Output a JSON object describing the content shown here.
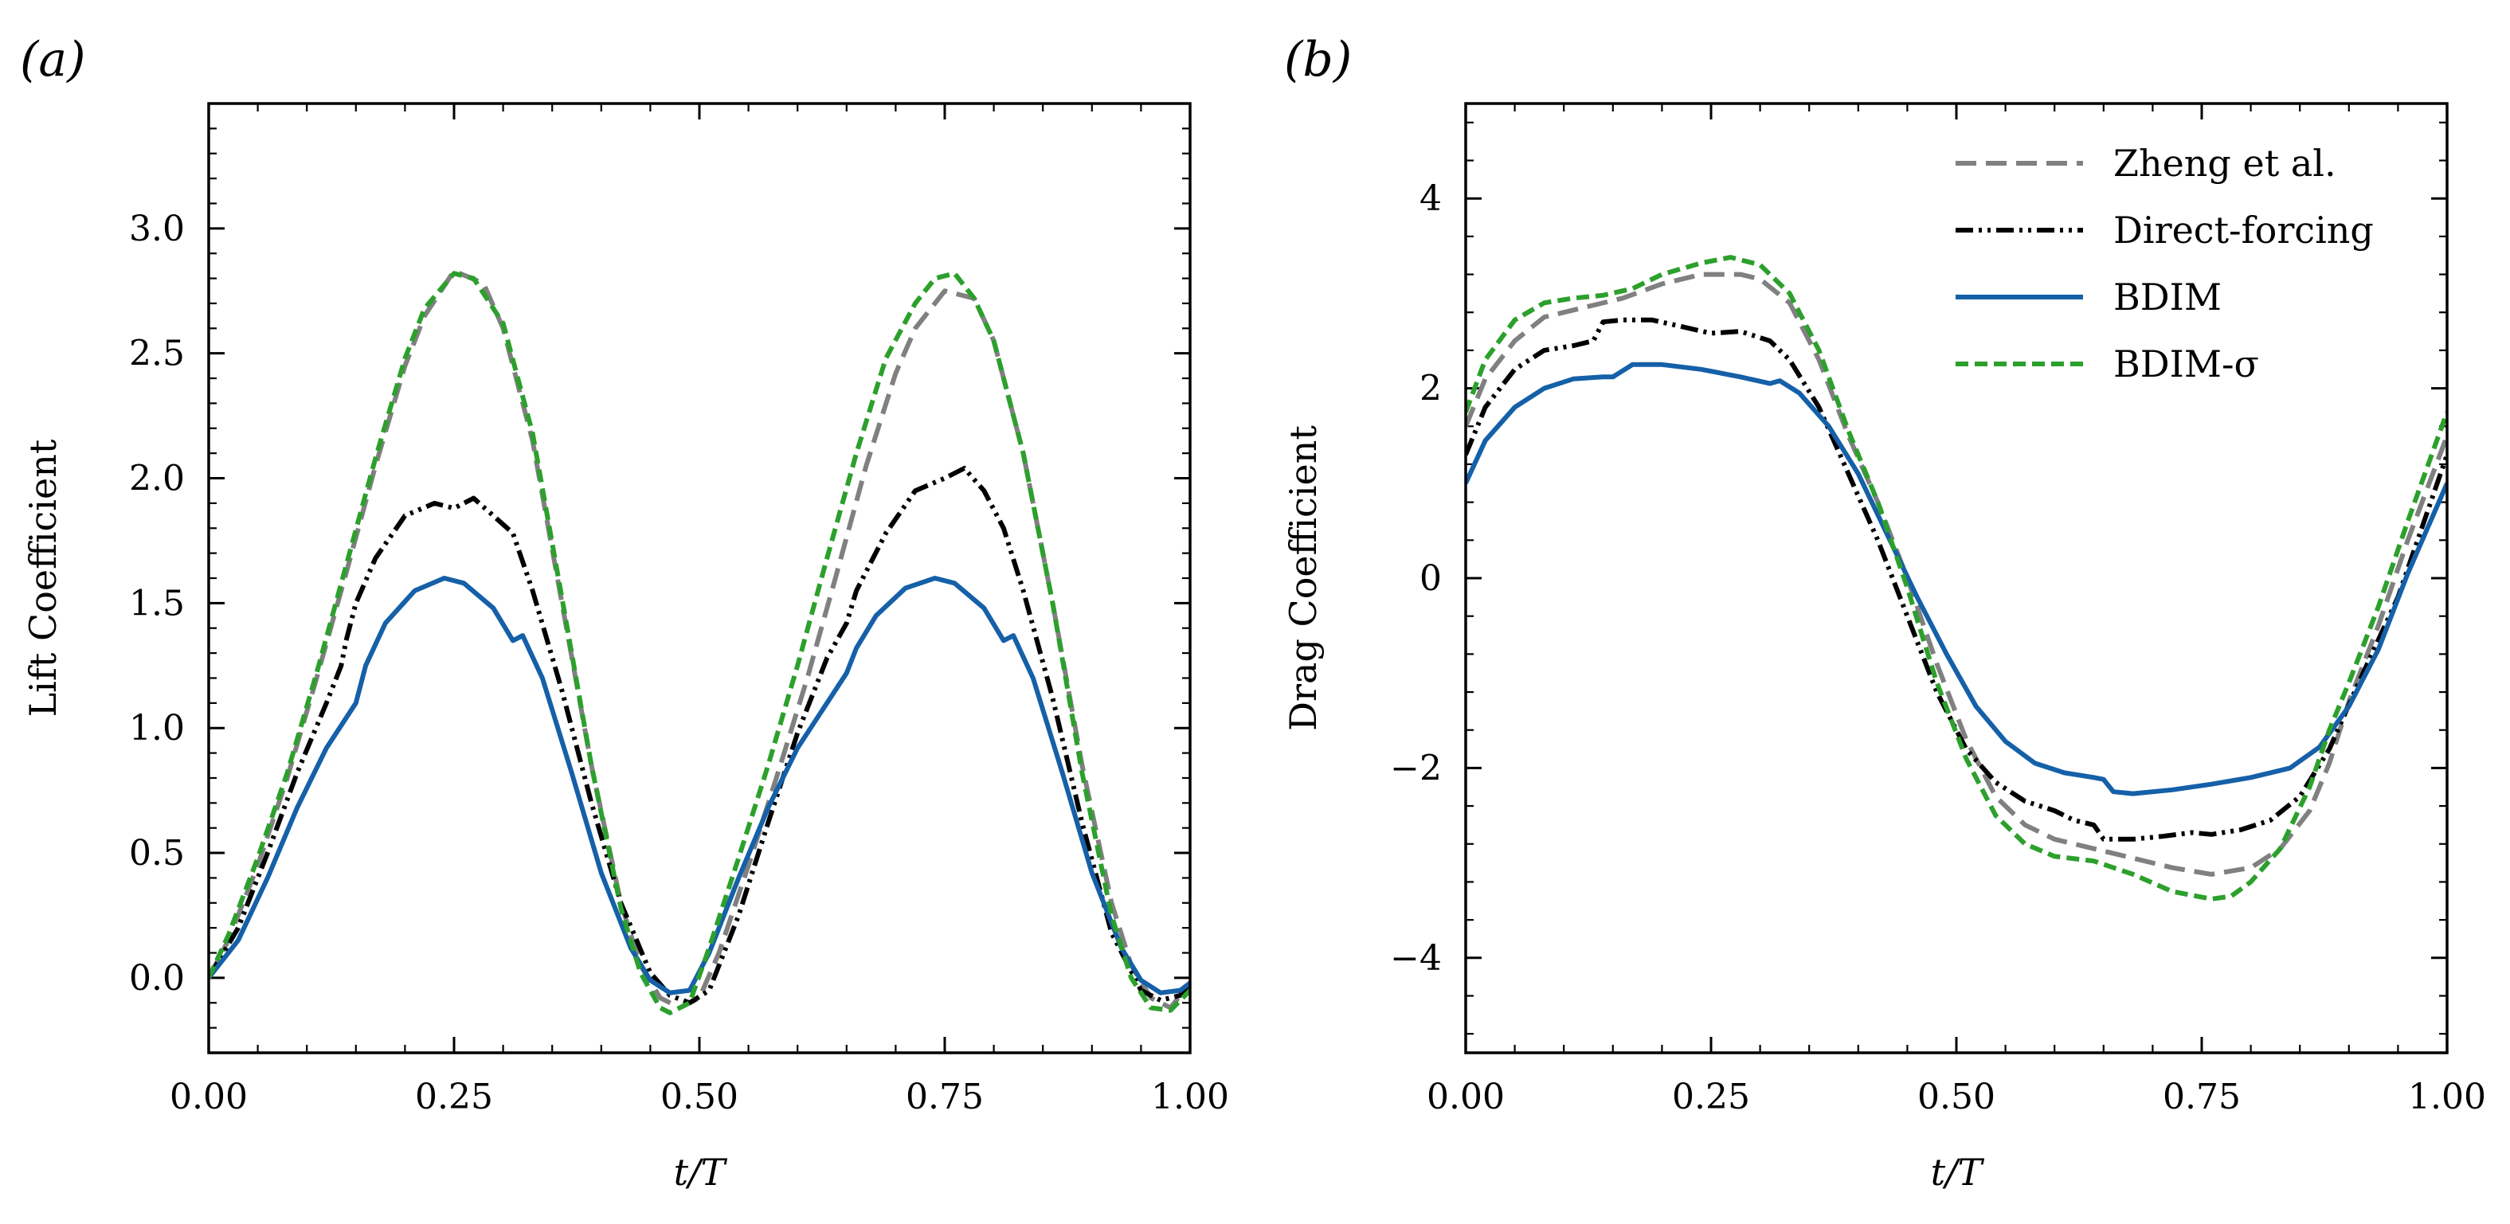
{
  "chart_data": [
    {
      "type": "line",
      "panel_label": "(a)",
      "xlabel": "t/T",
      "ylabel": "Lift Coefficient",
      "xlim": [
        0,
        1
      ],
      "ylim": [
        -0.3,
        3.5
      ],
      "xticks": [
        0,
        0.25,
        0.5,
        0.75,
        1.0
      ],
      "xtick_labels": [
        "0.00",
        "0.25",
        "0.50",
        "0.75",
        "1.00"
      ],
      "yticks": [
        0,
        0.5,
        1.0,
        1.5,
        2.0,
        2.5,
        3.0
      ],
      "ytick_labels": [
        "0.0",
        "0.5",
        "1.0",
        "1.5",
        "2.0",
        "2.5",
        "3.0"
      ],
      "legend": false,
      "series": [
        {
          "name": "Zheng et al.",
          "style": "dashed",
          "color": "#808080",
          "x": [
            0,
            0.02,
            0.05,
            0.08,
            0.11,
            0.14,
            0.17,
            0.2,
            0.22,
            0.25,
            0.28,
            0.3,
            0.33,
            0.36,
            0.39,
            0.42,
            0.44,
            0.46,
            0.48,
            0.5,
            0.52,
            0.55,
            0.58,
            0.61,
            0.64,
            0.67,
            0.7,
            0.72,
            0.75,
            0.78,
            0.8,
            0.83,
            0.86,
            0.89,
            0.92,
            0.94,
            0.96,
            0.98,
            1.0
          ],
          "y": [
            0,
            0.15,
            0.45,
            0.8,
            1.2,
            1.62,
            2.05,
            2.45,
            2.65,
            2.83,
            2.78,
            2.6,
            2.15,
            1.5,
            0.85,
            0.3,
            0.05,
            -0.08,
            -0.12,
            -0.08,
            0.1,
            0.45,
            0.82,
            1.2,
            1.62,
            2.05,
            2.42,
            2.6,
            2.75,
            2.72,
            2.55,
            2.1,
            1.5,
            0.85,
            0.3,
            0.05,
            -0.08,
            -0.12,
            -0.02
          ]
        },
        {
          "name": "Direct-forcing",
          "style": "dashdotdot",
          "color": "#000000",
          "x": [
            0,
            0.03,
            0.06,
            0.09,
            0.12,
            0.135,
            0.14,
            0.15,
            0.17,
            0.2,
            0.23,
            0.25,
            0.27,
            0.29,
            0.31,
            0.33,
            0.36,
            0.39,
            0.42,
            0.45,
            0.47,
            0.49,
            0.51,
            0.54,
            0.57,
            0.6,
            0.63,
            0.65,
            0.66,
            0.69,
            0.72,
            0.75,
            0.77,
            0.79,
            0.81,
            0.83,
            0.86,
            0.89,
            0.92,
            0.95,
            0.97,
            0.99,
            1.0
          ],
          "y": [
            0,
            0.2,
            0.5,
            0.82,
            1.1,
            1.25,
            1.35,
            1.5,
            1.68,
            1.85,
            1.9,
            1.88,
            1.92,
            1.85,
            1.78,
            1.55,
            1.15,
            0.7,
            0.3,
            0.02,
            -0.07,
            -0.1,
            -0.05,
            0.25,
            0.62,
            0.98,
            1.28,
            1.42,
            1.55,
            1.78,
            1.95,
            2.0,
            2.04,
            1.95,
            1.8,
            1.55,
            1.12,
            0.62,
            0.18,
            -0.05,
            -0.09,
            -0.07,
            -0.02
          ]
        },
        {
          "name": "BDIM",
          "style": "solid",
          "color": "#1560a8",
          "x": [
            0,
            0.03,
            0.06,
            0.09,
            0.12,
            0.15,
            0.16,
            0.18,
            0.21,
            0.24,
            0.26,
            0.29,
            0.31,
            0.32,
            0.34,
            0.37,
            0.4,
            0.43,
            0.45,
            0.47,
            0.49,
            0.51,
            0.54,
            0.57,
            0.6,
            0.63,
            0.65,
            0.66,
            0.68,
            0.71,
            0.74,
            0.76,
            0.79,
            0.81,
            0.82,
            0.84,
            0.87,
            0.9,
            0.93,
            0.95,
            0.97,
            0.99,
            1.0
          ],
          "y": [
            0,
            0.15,
            0.4,
            0.68,
            0.92,
            1.1,
            1.25,
            1.42,
            1.55,
            1.6,
            1.58,
            1.48,
            1.35,
            1.37,
            1.2,
            0.82,
            0.42,
            0.12,
            -0.01,
            -0.06,
            -0.05,
            0.1,
            0.4,
            0.68,
            0.92,
            1.1,
            1.22,
            1.32,
            1.45,
            1.56,
            1.6,
            1.58,
            1.48,
            1.35,
            1.37,
            1.2,
            0.82,
            0.42,
            0.12,
            -0.01,
            -0.06,
            -0.05,
            -0.02
          ]
        },
        {
          "name": "BDIM-σ",
          "style": "dashed-short",
          "color": "#2ca02c",
          "x": [
            0,
            0.02,
            0.05,
            0.08,
            0.11,
            0.14,
            0.17,
            0.2,
            0.22,
            0.25,
            0.27,
            0.3,
            0.33,
            0.36,
            0.39,
            0.42,
            0.44,
            0.46,
            0.47,
            0.49,
            0.51,
            0.54,
            0.57,
            0.6,
            0.63,
            0.66,
            0.69,
            0.72,
            0.74,
            0.76,
            0.78,
            0.8,
            0.83,
            0.86,
            0.89,
            0.92,
            0.94,
            0.96,
            0.98,
            1.0
          ],
          "y": [
            0,
            0.17,
            0.48,
            0.82,
            1.22,
            1.65,
            2.08,
            2.48,
            2.68,
            2.82,
            2.8,
            2.62,
            2.18,
            1.52,
            0.85,
            0.28,
            0.02,
            -0.12,
            -0.14,
            -0.1,
            0.12,
            0.48,
            0.85,
            1.25,
            1.68,
            2.1,
            2.48,
            2.7,
            2.8,
            2.82,
            2.72,
            2.55,
            2.1,
            1.5,
            0.82,
            0.25,
            0.0,
            -0.12,
            -0.13,
            -0.05
          ]
        }
      ]
    },
    {
      "type": "line",
      "panel_label": "(b)",
      "xlabel": "t/T",
      "ylabel": "Drag Coefficient",
      "xlim": [
        0,
        1
      ],
      "ylim": [
        -5,
        5
      ],
      "xticks": [
        0,
        0.25,
        0.5,
        0.75,
        1.0
      ],
      "xtick_labels": [
        "0.00",
        "0.25",
        "0.50",
        "0.75",
        "1.00"
      ],
      "yticks": [
        -4,
        -2,
        0,
        2,
        4
      ],
      "ytick_labels": [
        "−4",
        "−2",
        "0",
        "2",
        "4"
      ],
      "legend": true,
      "legend_loc": "upper right",
      "series": [
        {
          "name": "Zheng et al.",
          "style": "dashed",
          "color": "#808080",
          "x": [
            0,
            0.02,
            0.05,
            0.08,
            0.12,
            0.16,
            0.2,
            0.24,
            0.28,
            0.3,
            0.33,
            0.36,
            0.39,
            0.42,
            0.45,
            0.48,
            0.51,
            0.54,
            0.57,
            0.6,
            0.64,
            0.68,
            0.72,
            0.76,
            0.8,
            0.83,
            0.86,
            0.88,
            0.9,
            0.93,
            0.96,
            1.0
          ],
          "y": [
            1.6,
            2.1,
            2.5,
            2.75,
            2.85,
            2.95,
            3.1,
            3.2,
            3.2,
            3.15,
            2.9,
            2.3,
            1.5,
            0.8,
            0.0,
            -0.9,
            -1.7,
            -2.3,
            -2.6,
            -2.75,
            -2.85,
            -2.95,
            -3.05,
            -3.12,
            -3.05,
            -2.85,
            -2.45,
            -1.95,
            -1.3,
            -0.5,
            0.4,
            1.5
          ]
        },
        {
          "name": "Direct-forcing",
          "style": "dashdotdot",
          "color": "#000000",
          "x": [
            0,
            0.02,
            0.05,
            0.08,
            0.11,
            0.13,
            0.14,
            0.16,
            0.19,
            0.22,
            0.25,
            0.28,
            0.31,
            0.33,
            0.36,
            0.39,
            0.42,
            0.45,
            0.48,
            0.51,
            0.54,
            0.57,
            0.6,
            0.62,
            0.64,
            0.65,
            0.68,
            0.71,
            0.74,
            0.76,
            0.79,
            0.82,
            0.85,
            0.88,
            0.91,
            0.95,
            1.0
          ],
          "y": [
            1.3,
            1.8,
            2.2,
            2.4,
            2.45,
            2.5,
            2.7,
            2.72,
            2.72,
            2.65,
            2.58,
            2.6,
            2.5,
            2.3,
            1.8,
            1.1,
            0.4,
            -0.4,
            -1.2,
            -1.8,
            -2.15,
            -2.35,
            -2.45,
            -2.55,
            -2.6,
            -2.75,
            -2.75,
            -2.72,
            -2.68,
            -2.7,
            -2.65,
            -2.55,
            -2.3,
            -1.8,
            -1.1,
            -0.2,
            1.3
          ]
        },
        {
          "name": "BDIM",
          "style": "solid",
          "color": "#1560a8",
          "x": [
            0,
            0.02,
            0.05,
            0.08,
            0.11,
            0.14,
            0.15,
            0.17,
            0.2,
            0.24,
            0.28,
            0.31,
            0.32,
            0.34,
            0.37,
            0.4,
            0.43,
            0.46,
            0.49,
            0.52,
            0.55,
            0.58,
            0.61,
            0.64,
            0.65,
            0.66,
            0.68,
            0.72,
            0.76,
            0.8,
            0.82,
            0.84,
            0.87,
            0.9,
            0.93,
            0.96,
            1.0
          ],
          "y": [
            1.0,
            1.45,
            1.8,
            2.0,
            2.1,
            2.12,
            2.12,
            2.25,
            2.25,
            2.2,
            2.12,
            2.05,
            2.08,
            1.95,
            1.6,
            1.1,
            0.45,
            -0.2,
            -0.8,
            -1.35,
            -1.72,
            -1.95,
            -2.05,
            -2.1,
            -2.12,
            -2.25,
            -2.27,
            -2.23,
            -2.17,
            -2.1,
            -2.05,
            -2.0,
            -1.78,
            -1.35,
            -0.75,
            0.05,
            1.0
          ]
        },
        {
          "name": "BDIM-σ",
          "style": "dashed-short",
          "color": "#2ca02c",
          "x": [
            0,
            0.02,
            0.05,
            0.08,
            0.11,
            0.14,
            0.17,
            0.2,
            0.24,
            0.27,
            0.3,
            0.33,
            0.36,
            0.39,
            0.42,
            0.45,
            0.48,
            0.51,
            0.54,
            0.57,
            0.6,
            0.64,
            0.68,
            0.72,
            0.76,
            0.78,
            0.8,
            0.83,
            0.86,
            0.88,
            0.9,
            0.93,
            0.96,
            1.0
          ],
          "y": [
            1.75,
            2.3,
            2.72,
            2.9,
            2.95,
            2.98,
            3.05,
            3.2,
            3.32,
            3.38,
            3.3,
            3.0,
            2.4,
            1.55,
            0.8,
            -0.1,
            -1.1,
            -1.9,
            -2.5,
            -2.8,
            -2.93,
            -2.98,
            -3.12,
            -3.3,
            -3.38,
            -3.35,
            -3.2,
            -2.85,
            -2.2,
            -1.6,
            -1.1,
            -0.3,
            0.6,
            1.75
          ]
        }
      ]
    }
  ]
}
